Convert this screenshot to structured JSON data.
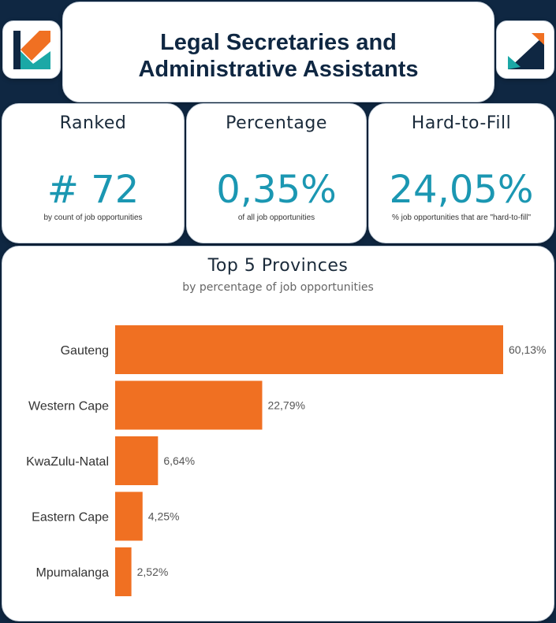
{
  "header": {
    "title_line1": "Legal Secretaries and",
    "title_line2": "Administrative Assistants"
  },
  "logos": {
    "left": "kt-logo-icon",
    "right": "kt-logo-icon"
  },
  "kpis": [
    {
      "heading": "Ranked",
      "value": "# 72",
      "caption": "by count of job opportunities"
    },
    {
      "heading": "Percentage",
      "value": "0,35%",
      "caption": "of all job opportunities"
    },
    {
      "heading": "Hard-to-Fill",
      "value": "24,05%",
      "caption": "% job opportunities that are \"hard-to-fill\""
    }
  ],
  "colors": {
    "bar": "#f07022",
    "kpi_value": "#1b97b2",
    "navy": "#0f2742"
  },
  "chart_data": {
    "type": "bar",
    "orientation": "horizontal",
    "title": "Top 5 Provinces",
    "subtitle": "by percentage of job opportunities",
    "categories": [
      "Gauteng",
      "Western Cape",
      "KwaZulu-Natal",
      "Eastern Cape",
      "Mpumalanga"
    ],
    "values": [
      60.13,
      22.79,
      6.64,
      4.25,
      2.52
    ],
    "data_labels": [
      "60,13%",
      "22,79%",
      "6,64%",
      "4,25%",
      "2,52%"
    ],
    "xlim": [
      0,
      60.13
    ],
    "grid": false
  }
}
